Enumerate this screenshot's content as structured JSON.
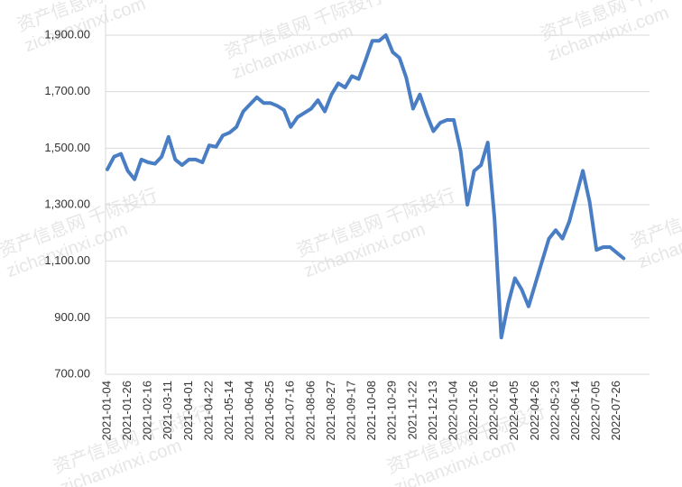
{
  "chart_data": {
    "type": "line",
    "categories": [
      "2021-01-04",
      null,
      null,
      "2021-01-26",
      null,
      null,
      "2021-02-16",
      null,
      null,
      "2021-03-11",
      null,
      null,
      "2021-04-01",
      null,
      null,
      "2021-04-22",
      null,
      null,
      "2021-05-14",
      null,
      null,
      "2021-06-04",
      null,
      null,
      "2021-06-25",
      null,
      null,
      "2021-07-16",
      null,
      null,
      "2021-08-06",
      null,
      null,
      "2021-08-27",
      null,
      null,
      "2021-09-17",
      null,
      null,
      "2021-10-08",
      null,
      null,
      "2021-10-29",
      null,
      null,
      "2021-11-22",
      null,
      null,
      "2021-12-13",
      null,
      null,
      "2022-01-04",
      null,
      null,
      "2022-01-26",
      null,
      null,
      "2022-02-16",
      null,
      null,
      "2022-04-05",
      null,
      null,
      "2022-04-26",
      null,
      null,
      "2022-05-23",
      null,
      null,
      "2022-06-14",
      null,
      null,
      "2022-07-05",
      null,
      null,
      "2022-07-26",
      null
    ],
    "series": [
      {
        "color": "#4a7ec4",
        "values": [
          1425,
          1470,
          1480,
          1420,
          1390,
          1460,
          1450,
          1445,
          1470,
          1540,
          1460,
          1440,
          1460,
          1460,
          1450,
          1510,
          1505,
          1545,
          1555,
          1575,
          1630,
          1655,
          1680,
          1660,
          1660,
          1650,
          1635,
          1575,
          1610,
          1625,
          1640,
          1670,
          1630,
          1690,
          1730,
          1715,
          1755,
          1745,
          1810,
          1880,
          1880,
          1900,
          1840,
          1820,
          1750,
          1640,
          1690,
          1620,
          1560,
          1590,
          1600,
          1600,
          1490,
          1300,
          1420,
          1440,
          1520,
          1250,
          830,
          950,
          1040,
          1000,
          940,
          1020,
          1100,
          1180,
          1210,
          1180,
          1240,
          1330,
          1420,
          1310,
          1140,
          1150,
          1150,
          1130,
          1110
        ]
      }
    ],
    "ylim": [
      700,
      1900
    ],
    "yticks": [
      {
        "value": 700,
        "label": "700.00"
      },
      {
        "value": 900,
        "label": "900.00"
      },
      {
        "value": 1100,
        "label": "1,100.00"
      },
      {
        "value": 1300,
        "label": "1,300.00"
      },
      {
        "value": 1500,
        "label": "1,500.00"
      },
      {
        "value": 1700,
        "label": "1,700.00"
      },
      {
        "value": 1900,
        "label": "1,900.00"
      }
    ],
    "grid": true,
    "watermark": [
      "资产信息网 千际投行",
      "zichanxinxi.com"
    ]
  }
}
